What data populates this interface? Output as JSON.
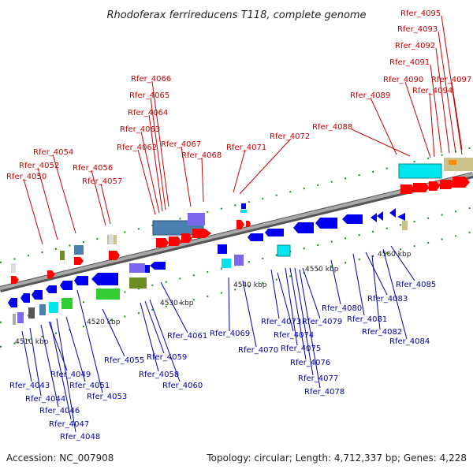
{
  "title": "Rhodoferax ferrireducens T118, complete genome",
  "accession": "Accession: NC_007908",
  "topology": "Topology: circular; Length: 4,712,337 bp; Genes: 4,228",
  "colors": {
    "backbone": "#8c8c8c",
    "forward_label": "#cc0000",
    "reverse_label": "#0000aa",
    "forward_gene": "#ff0000",
    "reverse_gene": "#0000ee",
    "tick": "#1a8a1a"
  },
  "scale_labels": [
    "4510 kbp",
    "4520 kbp",
    "4530 kbp",
    "4540 kbp",
    "4550 kbp",
    "4560 kbp"
  ],
  "top_labels": [
    "Rfer_4095",
    "Rfer_4093",
    "Rfer_4092",
    "Rfer_4091",
    "Rfer_4090",
    "Rfer_4094",
    "Rfer_4097",
    "Rfer_4089",
    "Rfer_4066",
    "Rfer_4065",
    "Rfer_4064",
    "Rfer_4063",
    "Rfer_4062",
    "Rfer_4067",
    "Rfer_4068",
    "Rfer_4088",
    "Rfer_4072",
    "Rfer_4071",
    "Rfer_4054",
    "Rfer_4052",
    "Rfer_4056",
    "Rfer_4050",
    "Rfer_4057"
  ],
  "bottom_labels": [
    "Rfer_4085",
    "Rfer_4083",
    "Rfer_4080",
    "Rfer_4081",
    "Rfer_4082",
    "Rfer_4084",
    "Rfer_4061",
    "Rfer_4069",
    "Rfer_4073",
    "Rfer_4079",
    "Rfer_4074",
    "Rfer_4070",
    "Rfer_4075",
    "Rfer_4076",
    "Rfer_4077",
    "Rfer_4078",
    "Rfer_4055",
    "Rfer_4059",
    "Rfer_4058",
    "Rfer_4060",
    "Rfer_4049",
    "Rfer_4043",
    "Rfer_4051",
    "Rfer_4044",
    "Rfer_4053",
    "Rfer_4046",
    "Rfer_4047",
    "Rfer_4048"
  ]
}
